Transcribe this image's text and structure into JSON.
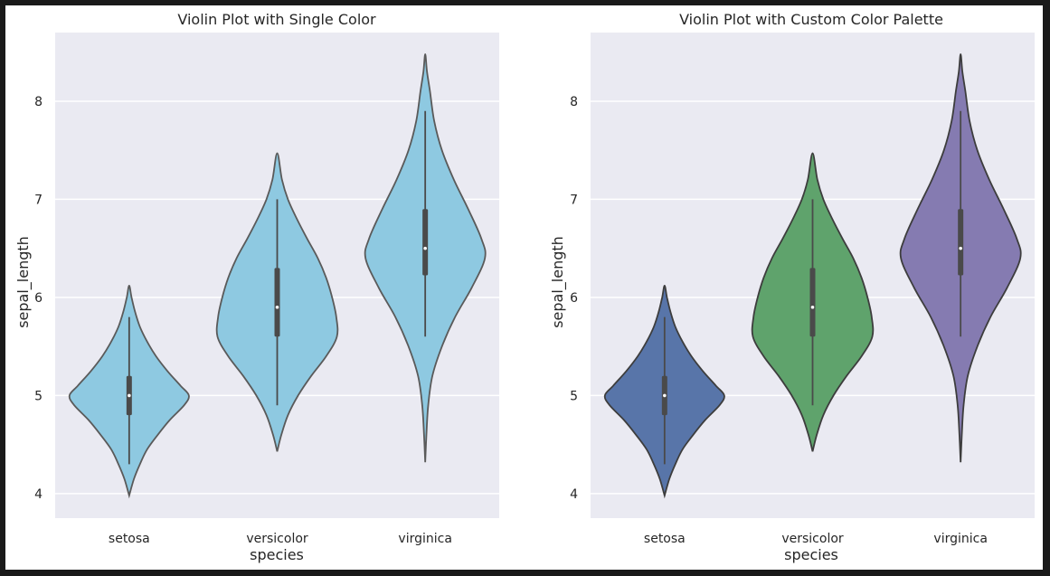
{
  "chart_data": [
    {
      "type": "violin",
      "title": "Violin Plot with Single Color",
      "xlabel": "species",
      "ylabel": "sepal_length",
      "categories": [
        "setosa",
        "versicolor",
        "virginica"
      ],
      "yticks": [
        4,
        5,
        6,
        7,
        8
      ],
      "ylim": [
        3.75,
        8.7
      ],
      "grid": true,
      "fill_colors": [
        "#8ec9e1",
        "#8ec9e1",
        "#8ec9e1"
      ],
      "outline_color": "#5a5a5a",
      "violins": [
        {
          "category": "setosa",
          "q1": 4.8,
          "median": 5.0,
          "q3": 5.2,
          "whisker_low": 4.3,
          "whisker_high": 5.8,
          "density": [
            [
              3.98,
              0
            ],
            [
              4.15,
              0.08
            ],
            [
              4.3,
              0.18
            ],
            [
              4.45,
              0.3
            ],
            [
              4.6,
              0.48
            ],
            [
              4.75,
              0.68
            ],
            [
              4.9,
              0.92
            ],
            [
              5.0,
              1.0
            ],
            [
              5.1,
              0.86
            ],
            [
              5.25,
              0.64
            ],
            [
              5.4,
              0.45
            ],
            [
              5.55,
              0.3
            ],
            [
              5.7,
              0.18
            ],
            [
              5.85,
              0.1
            ],
            [
              6.0,
              0.04
            ],
            [
              6.12,
              0
            ]
          ]
        },
        {
          "category": "versicolor",
          "q1": 5.6,
          "median": 5.9,
          "q3": 6.3,
          "whisker_low": 4.9,
          "whisker_high": 7.0,
          "density": [
            [
              4.43,
              0
            ],
            [
              4.6,
              0.07
            ],
            [
              4.8,
              0.18
            ],
            [
              5.0,
              0.35
            ],
            [
              5.2,
              0.57
            ],
            [
              5.4,
              0.82
            ],
            [
              5.6,
              1.0
            ],
            [
              5.8,
              0.99
            ],
            [
              6.0,
              0.92
            ],
            [
              6.2,
              0.82
            ],
            [
              6.4,
              0.68
            ],
            [
              6.6,
              0.5
            ],
            [
              6.8,
              0.33
            ],
            [
              7.0,
              0.18
            ],
            [
              7.2,
              0.08
            ],
            [
              7.47,
              0
            ]
          ]
        },
        {
          "category": "virginica",
          "q1": 6.225,
          "median": 6.5,
          "q3": 6.9,
          "whisker_low": 5.6,
          "whisker_high": 7.9,
          "density": [
            [
              4.32,
              0
            ],
            [
              4.6,
              0.02
            ],
            [
              4.9,
              0.05
            ],
            [
              5.2,
              0.12
            ],
            [
              5.5,
              0.28
            ],
            [
              5.8,
              0.5
            ],
            [
              6.1,
              0.78
            ],
            [
              6.4,
              1.0
            ],
            [
              6.6,
              0.94
            ],
            [
              6.9,
              0.72
            ],
            [
              7.2,
              0.48
            ],
            [
              7.5,
              0.28
            ],
            [
              7.8,
              0.15
            ],
            [
              8.1,
              0.08
            ],
            [
              8.3,
              0.03
            ],
            [
              8.48,
              0
            ]
          ]
        }
      ]
    },
    {
      "type": "violin",
      "title": "Violin Plot with Custom Color Palette",
      "xlabel": "species",
      "ylabel": "sepal_length",
      "categories": [
        "setosa",
        "versicolor",
        "virginica"
      ],
      "yticks": [
        4,
        5,
        6,
        7,
        8
      ],
      "ylim": [
        3.75,
        8.7
      ],
      "grid": true,
      "fill_colors": [
        "#5875a9",
        "#5fa36c",
        "#857bb1"
      ],
      "outline_color": "#3d3d3d",
      "violins": [
        {
          "category": "setosa",
          "q1": 4.8,
          "median": 5.0,
          "q3": 5.2,
          "whisker_low": 4.3,
          "whisker_high": 5.8,
          "density": [
            [
              3.98,
              0
            ],
            [
              4.15,
              0.08
            ],
            [
              4.3,
              0.18
            ],
            [
              4.45,
              0.3
            ],
            [
              4.6,
              0.48
            ],
            [
              4.75,
              0.68
            ],
            [
              4.9,
              0.92
            ],
            [
              5.0,
              1.0
            ],
            [
              5.1,
              0.86
            ],
            [
              5.25,
              0.64
            ],
            [
              5.4,
              0.45
            ],
            [
              5.55,
              0.3
            ],
            [
              5.7,
              0.18
            ],
            [
              5.85,
              0.1
            ],
            [
              6.0,
              0.04
            ],
            [
              6.12,
              0
            ]
          ]
        },
        {
          "category": "versicolor",
          "q1": 5.6,
          "median": 5.9,
          "q3": 6.3,
          "whisker_low": 4.9,
          "whisker_high": 7.0,
          "density": [
            [
              4.43,
              0
            ],
            [
              4.6,
              0.07
            ],
            [
              4.8,
              0.18
            ],
            [
              5.0,
              0.35
            ],
            [
              5.2,
              0.57
            ],
            [
              5.4,
              0.82
            ],
            [
              5.6,
              1.0
            ],
            [
              5.8,
              0.99
            ],
            [
              6.0,
              0.92
            ],
            [
              6.2,
              0.82
            ],
            [
              6.4,
              0.68
            ],
            [
              6.6,
              0.5
            ],
            [
              6.8,
              0.33
            ],
            [
              7.0,
              0.18
            ],
            [
              7.2,
              0.08
            ],
            [
              7.47,
              0
            ]
          ]
        },
        {
          "category": "virginica",
          "q1": 6.225,
          "median": 6.5,
          "q3": 6.9,
          "whisker_low": 5.6,
          "whisker_high": 7.9,
          "density": [
            [
              4.32,
              0
            ],
            [
              4.6,
              0.02
            ],
            [
              4.9,
              0.05
            ],
            [
              5.2,
              0.12
            ],
            [
              5.5,
              0.28
            ],
            [
              5.8,
              0.5
            ],
            [
              6.1,
              0.78
            ],
            [
              6.4,
              1.0
            ],
            [
              6.6,
              0.94
            ],
            [
              6.9,
              0.72
            ],
            [
              7.2,
              0.48
            ],
            [
              7.5,
              0.28
            ],
            [
              7.8,
              0.15
            ],
            [
              8.1,
              0.08
            ],
            [
              8.3,
              0.03
            ],
            [
              8.48,
              0
            ]
          ]
        }
      ]
    }
  ]
}
